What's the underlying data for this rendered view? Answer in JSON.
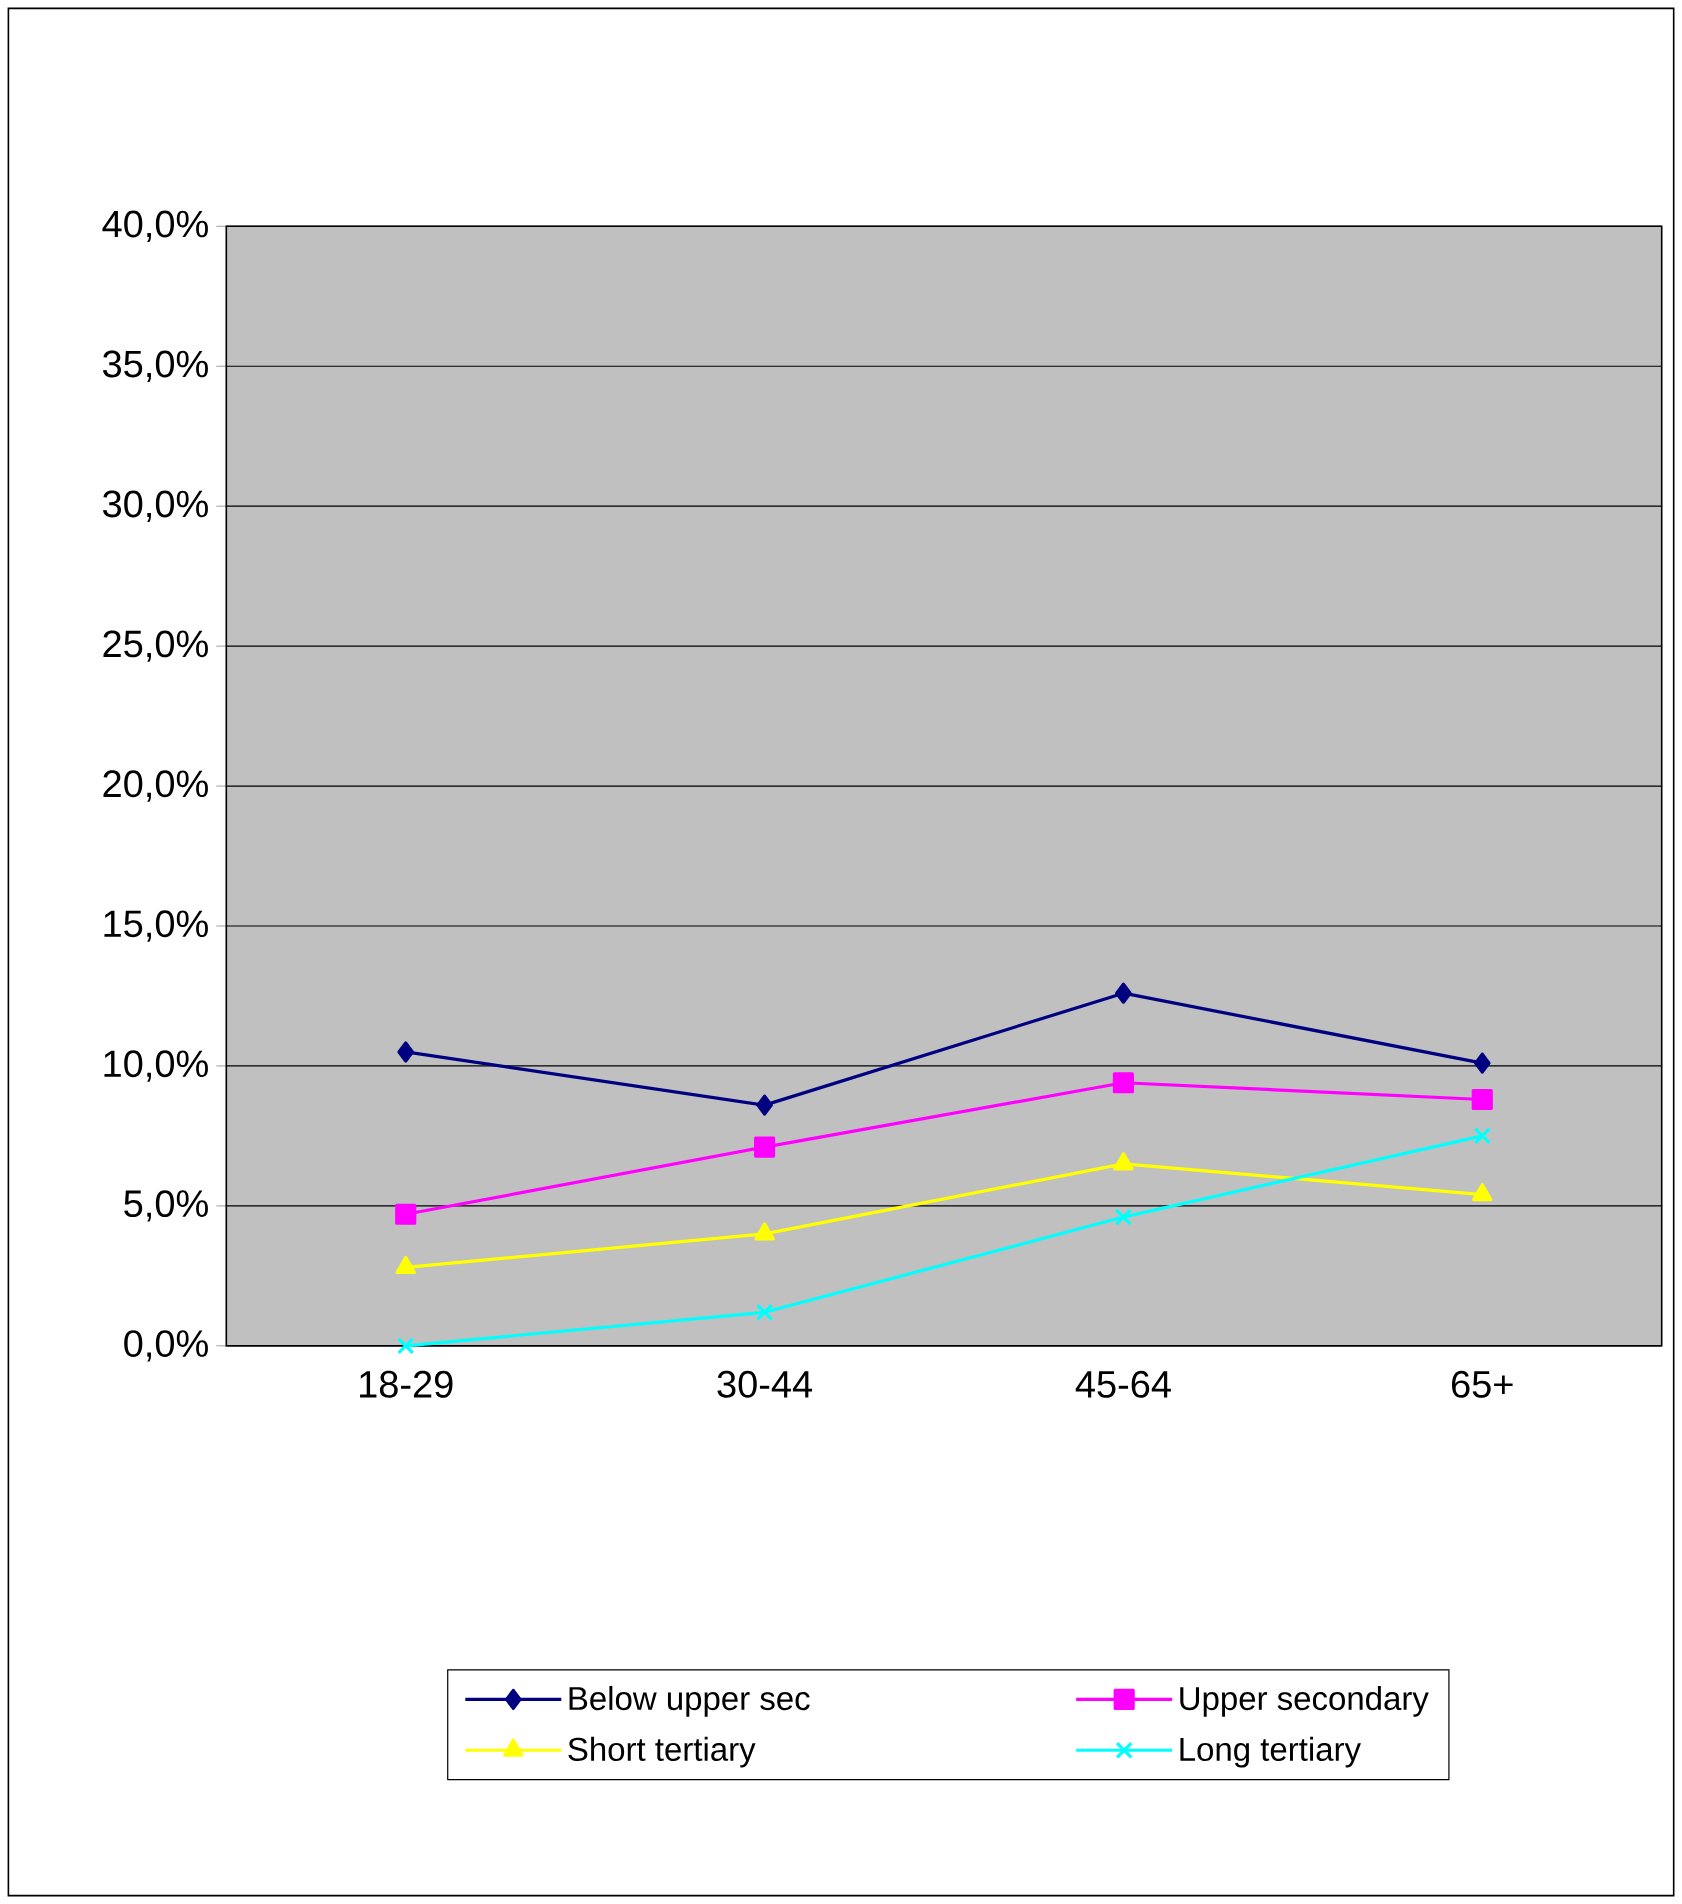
{
  "chart_data": {
    "type": "line",
    "categories": [
      "18-29",
      "30-44",
      "45-64",
      "65+"
    ],
    "series": [
      {
        "name": "Below upper sec",
        "color": "#000080",
        "marker": "diamond",
        "values": [
          10.5,
          8.6,
          12.6,
          10.1
        ]
      },
      {
        "name": "Upper secondary",
        "color": "#ff00ff",
        "marker": "square",
        "values": [
          4.7,
          7.1,
          9.4,
          8.8
        ]
      },
      {
        "name": "Short tertiary",
        "color": "#ffff00",
        "marker": "triangle",
        "values": [
          2.8,
          4.0,
          6.5,
          5.4
        ]
      },
      {
        "name": "Long tertiary",
        "color": "#00ffff",
        "marker": "cross",
        "values": [
          0.0,
          1.2,
          4.6,
          7.5
        ]
      }
    ],
    "ylim": [
      0,
      40
    ],
    "yticks": [
      {
        "value": 0,
        "label": "0,0%"
      },
      {
        "value": 5,
        "label": "5,0%"
      },
      {
        "value": 10,
        "label": "10,0%"
      },
      {
        "value": 15,
        "label": "15,0%"
      },
      {
        "value": 20,
        "label": "20,0%"
      },
      {
        "value": 25,
        "label": "25,0%"
      },
      {
        "value": 30,
        "label": "30,0%"
      },
      {
        "value": 35,
        "label": "35,0%"
      },
      {
        "value": 40,
        "label": "40,0%"
      }
    ],
    "grid": "y",
    "legend": "bottom"
  }
}
